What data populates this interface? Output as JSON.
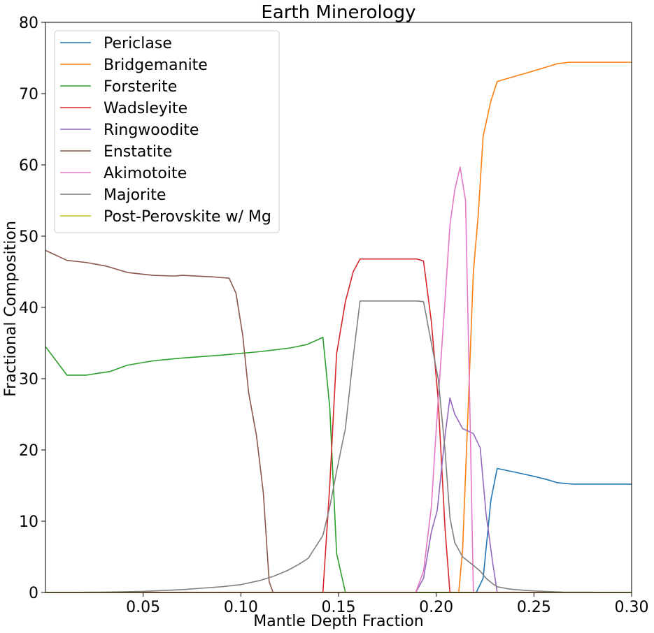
{
  "chart_data": {
    "type": "line",
    "title": "Earth Minerology",
    "xlabel": "Mantle Depth Fraction",
    "ylabel": "Fractional Composition",
    "xlim": [
      0.0,
      0.3
    ],
    "ylim": [
      0,
      80
    ],
    "xticks": [
      0.05,
      0.1,
      0.15,
      0.2,
      0.25,
      0.3
    ],
    "xtick_labels": [
      "0.05",
      "0.10",
      "0.15",
      "0.20",
      "0.25",
      "0.30"
    ],
    "yticks": [
      0,
      10,
      20,
      30,
      40,
      50,
      60,
      70,
      80
    ],
    "ytick_labels": [
      "0",
      "10",
      "20",
      "30",
      "40",
      "50",
      "60",
      "70",
      "80"
    ],
    "grid": false,
    "legend_position": "upper-left",
    "series": [
      {
        "name": "Periclase",
        "color": "#1f77b4",
        "x": [
          0.0,
          0.2205,
          0.224,
          0.228,
          0.2312,
          0.24,
          0.25,
          0.256,
          0.262,
          0.27,
          0.285,
          0.3
        ],
        "y": [
          0,
          0,
          2,
          13,
          17.4,
          16.9,
          16.3,
          15.9,
          15.4,
          15.2,
          15.2,
          15.2
        ]
      },
      {
        "name": "Bridgemanite",
        "color": "#ff7f0e",
        "x": [
          0.0,
          0.2115,
          0.2135,
          0.2165,
          0.219,
          0.2215,
          0.224,
          0.228,
          0.2312,
          0.24,
          0.25,
          0.256,
          0.262,
          0.268,
          0.28,
          0.3
        ],
        "y": [
          0,
          0,
          6,
          27,
          45,
          53,
          64,
          69,
          71.7,
          72.4,
          73.2,
          73.7,
          74.2,
          74.4,
          74.4,
          74.4
        ]
      },
      {
        "name": "Forsterite",
        "color": "#2ca02c",
        "x": [
          0.0,
          0.011,
          0.021,
          0.028,
          0.033,
          0.042,
          0.055,
          0.07,
          0.09,
          0.11,
          0.125,
          0.134,
          0.142,
          0.1455,
          0.149,
          0.1535,
          0.3
        ],
        "y": [
          34.5,
          30.5,
          30.5,
          30.8,
          31.0,
          31.9,
          32.5,
          32.9,
          33.3,
          33.8,
          34.3,
          34.8,
          35.8,
          26,
          5.5,
          0,
          0
        ]
      },
      {
        "name": "Wadsleyite",
        "color": "#d62728",
        "x": [
          0.0,
          0.142,
          0.1455,
          0.149,
          0.1535,
          0.1575,
          0.161,
          0.175,
          0.19,
          0.1935,
          0.1975,
          0.201,
          0.2045,
          0.207,
          0.3
        ],
        "y": [
          0,
          0,
          15,
          33.5,
          40.8,
          45,
          46.8,
          46.8,
          46.8,
          46.5,
          38,
          27,
          9,
          0,
          0
        ]
      },
      {
        "name": "Ringwoodite",
        "color": "#9467bd",
        "x": [
          0.0,
          0.1895,
          0.1935,
          0.1975,
          0.2005,
          0.2045,
          0.207,
          0.2095,
          0.2135,
          0.219,
          0.2225,
          0.2255,
          0.229,
          0.2312,
          0.3
        ],
        "y": [
          0,
          0,
          2,
          8.5,
          11.5,
          22,
          27.3,
          25,
          23,
          22.3,
          20.3,
          11,
          4,
          0,
          0
        ]
      },
      {
        "name": "Enstatite",
        "color": "#8c564b",
        "x": [
          0.0,
          0.011,
          0.021,
          0.031,
          0.042,
          0.055,
          0.066,
          0.07,
          0.085,
          0.094,
          0.0975,
          0.101,
          0.104,
          0.108,
          0.1115,
          0.1145,
          0.1165,
          0.3
        ],
        "y": [
          48,
          46.6,
          46.3,
          45.8,
          44.9,
          44.5,
          44.4,
          44.5,
          44.3,
          44.1,
          42,
          36,
          28,
          22,
          14,
          1.5,
          0,
          0
        ]
      },
      {
        "name": "Akimotoite",
        "color": "#e377c2",
        "x": [
          0.0,
          0.1895,
          0.1935,
          0.1975,
          0.2005,
          0.2045,
          0.207,
          0.2095,
          0.2122,
          0.215,
          0.2175,
          0.219,
          0.3
        ],
        "y": [
          0,
          0,
          3,
          12,
          25,
          41,
          51.5,
          56.5,
          59.7,
          55,
          22,
          0,
          0
        ]
      },
      {
        "name": "Majorite",
        "color": "#7f7f7f",
        "x": [
          0.0,
          0.03,
          0.05,
          0.07,
          0.08,
          0.09,
          0.1,
          0.11,
          0.117,
          0.124,
          0.13,
          0.1345,
          0.142,
          0.1455,
          0.149,
          0.1535,
          0.1575,
          0.161,
          0.175,
          0.19,
          0.1935,
          0.1975,
          0.201,
          0.2045,
          0.207,
          0.2095,
          0.2135,
          0.219,
          0.2225,
          0.2255,
          0.229,
          0.2312,
          0.237,
          0.245,
          0.255,
          0.265,
          0.3
        ],
        "y": [
          0,
          0.05,
          0.15,
          0.4,
          0.6,
          0.8,
          1.1,
          1.7,
          2.3,
          3.1,
          4,
          4.8,
          8,
          12,
          17,
          23,
          33,
          40.9,
          40.9,
          40.9,
          40.8,
          35,
          30,
          20,
          10.5,
          7,
          5,
          3.8,
          3,
          2,
          1.2,
          0.8,
          0.5,
          0.3,
          0.15,
          0.05,
          0
        ]
      },
      {
        "name": "Post-Perovskite w/ Mg",
        "color": "#bcbd22",
        "x": [
          0.0,
          0.3
        ],
        "y": [
          0,
          0
        ]
      }
    ]
  }
}
